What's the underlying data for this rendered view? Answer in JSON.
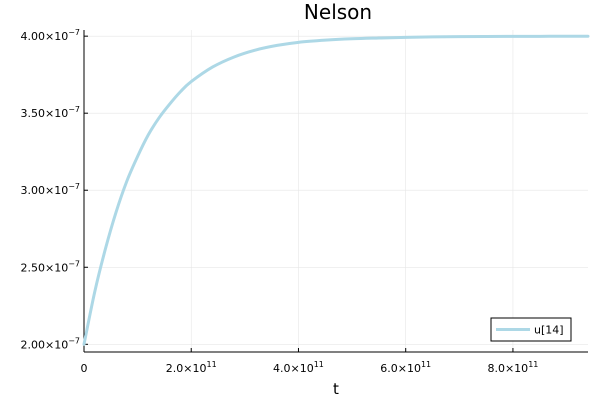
{
  "chart_data": {
    "type": "line",
    "title": "Nelson",
    "xlabel": "t",
    "ylabel": "",
    "xlim": [
      0,
      940000000000.0
    ],
    "ylim": [
      1.95e-07,
      4.04e-07
    ],
    "x_ticks": [
      {
        "value": 0,
        "mantissa": "0",
        "exponent": ""
      },
      {
        "value": 200000000000.0,
        "mantissa": "2.0×10",
        "exponent": "11"
      },
      {
        "value": 400000000000.0,
        "mantissa": "4.0×10",
        "exponent": "11"
      },
      {
        "value": 600000000000.0,
        "mantissa": "6.0×10",
        "exponent": "11"
      },
      {
        "value": 800000000000.0,
        "mantissa": "8.0×10",
        "exponent": "11"
      }
    ],
    "y_ticks": [
      {
        "value": 2e-07,
        "mantissa": "2.00×10",
        "exponent": "−7"
      },
      {
        "value": 2.5e-07,
        "mantissa": "2.50×10",
        "exponent": "−7"
      },
      {
        "value": 3e-07,
        "mantissa": "3.00×10",
        "exponent": "−7"
      },
      {
        "value": 3.5e-07,
        "mantissa": "3.50×10",
        "exponent": "−7"
      },
      {
        "value": 4e-07,
        "mantissa": "4.00×10",
        "exponent": "−7"
      }
    ],
    "grid": true,
    "legend_position": "bottom-right",
    "series": [
      {
        "name": "u[14]",
        "color": "#add8e6",
        "x": [
          0,
          20000000000.0,
          40000000000.0,
          60000000000.0,
          80000000000.0,
          100000000000.0,
          120000000000.0,
          140000000000.0,
          160000000000.0,
          180000000000.0,
          200000000000.0,
          240000000000.0,
          280000000000.0,
          320000000000.0,
          360000000000.0,
          400000000000.0,
          450000000000.0,
          500000000000.0,
          550000000000.0,
          600000000000.0,
          650000000000.0,
          700000000000.0,
          750000000000.0,
          800000000000.0,
          850000000000.0,
          900000000000.0,
          940000000000.0
        ],
        "y": [
          2e-07,
          2.34e-07,
          2.62e-07,
          2.86e-07,
          3.06e-07,
          3.22e-07,
          3.36e-07,
          3.47e-07,
          3.56e-07,
          3.64e-07,
          3.705e-07,
          3.8e-07,
          3.865e-07,
          3.91e-07,
          3.94e-07,
          3.96e-07,
          3.974e-07,
          3.983e-07,
          3.988e-07,
          3.992e-07,
          3.995e-07,
          3.997e-07,
          3.998e-07,
          3.9985e-07,
          3.999e-07,
          3.9993e-07,
          3.9995e-07
        ]
      }
    ]
  }
}
